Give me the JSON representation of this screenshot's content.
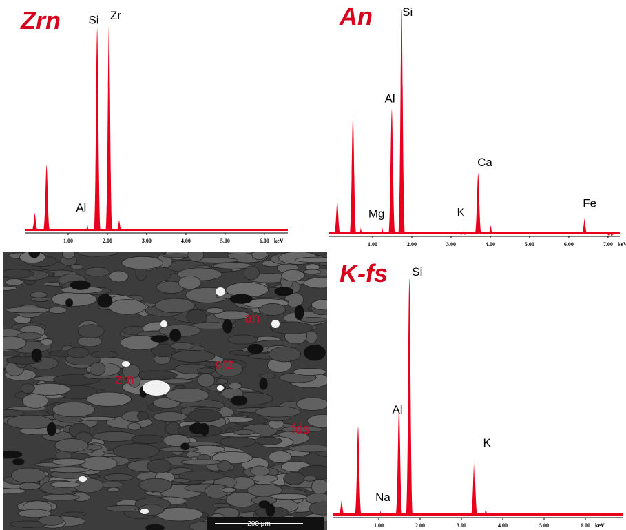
{
  "chart_data": [
    {
      "type": "spectrum",
      "title": "Zrn",
      "x_label": "keV",
      "color": "#e8001c",
      "xlim": [
        0,
        6.6
      ],
      "ylim": [
        0,
        100
      ],
      "xticks": [
        {
          "value": 1,
          "label": "1.00"
        },
        {
          "value": 2,
          "label": "2.00"
        },
        {
          "value": 3,
          "label": "3.00"
        },
        {
          "value": 4,
          "label": "4.00"
        },
        {
          "value": 5,
          "label": "5.00"
        },
        {
          "value": 6,
          "label": "6.00"
        }
      ],
      "x": [
        0.15,
        0.45,
        1.49,
        1.74,
        2.04,
        2.3
      ],
      "values": [
        8,
        29,
        3,
        89,
        91,
        5
      ],
      "annotations": [
        {
          "text": "Si",
          "x": 1.65,
          "y": 91
        },
        {
          "text": "Zr",
          "x": 2.21,
          "y": 93
        },
        {
          "text": "Al",
          "x": 1.33,
          "y": 8.5
        }
      ]
    },
    {
      "type": "spectrum",
      "title": "An",
      "x_label": "keV",
      "color": "#e8001c",
      "xlim": [
        0,
        7.3
      ],
      "ylim": [
        0,
        100
      ],
      "xticks": [
        {
          "value": 1,
          "label": "1.00"
        },
        {
          "value": 2,
          "label": "2.00"
        },
        {
          "value": 3,
          "label": "3.00"
        },
        {
          "value": 4,
          "label": "4.00"
        },
        {
          "value": 5,
          "label": "5.00"
        },
        {
          "value": 6,
          "label": "6.00"
        },
        {
          "value": 7,
          "label": "7.00"
        }
      ],
      "x": [
        0.1,
        0.5,
        0.7,
        1.25,
        1.49,
        1.74,
        3.31,
        3.69,
        4.01,
        6.4,
        7.06
      ],
      "values": [
        15,
        53,
        3,
        3,
        55,
        99,
        2,
        27,
        4,
        7,
        1
      ],
      "annotations": [
        {
          "text": "Si",
          "x": 1.89,
          "y": 96
        },
        {
          "text": "Al",
          "x": 1.44,
          "y": 58
        },
        {
          "text": "Ca",
          "x": 3.86,
          "y": 30
        },
        {
          "text": "Mg",
          "x": 1.1,
          "y": 7.5
        },
        {
          "text": "K",
          "x": 3.25,
          "y": 8
        },
        {
          "text": "Fe",
          "x": 6.53,
          "y": 12
        }
      ]
    },
    {
      "type": "spectrum",
      "title": "K-fs",
      "x_label": "keV",
      "color": "#e8001c",
      "xlim": [
        0,
        6.9
      ],
      "ylim": [
        0,
        100
      ],
      "xticks": [
        {
          "value": 1,
          "label": "1.00"
        },
        {
          "value": 2,
          "label": "2.00"
        },
        {
          "value": 3,
          "label": "3.00"
        },
        {
          "value": 4,
          "label": "4.00"
        },
        {
          "value": 5,
          "label": "5.00"
        },
        {
          "value": 6,
          "label": "6.00"
        }
      ],
      "x": [
        0.1,
        0.5,
        1.04,
        1.49,
        1.74,
        3.31,
        3.59
      ],
      "values": [
        6,
        35,
        2,
        43,
        93,
        22,
        3
      ],
      "annotations": [
        {
          "text": "Si",
          "x": 1.93,
          "y": 94
        },
        {
          "text": "Al",
          "x": 1.45,
          "y": 40
        },
        {
          "text": "K",
          "x": 3.62,
          "y": 27
        },
        {
          "text": "Na",
          "x": 1.1,
          "y": 5.7
        }
      ]
    }
  ],
  "image": {
    "labels": [
      "an",
      "qtz",
      "zrn",
      "fds"
    ],
    "scale_bar": "200 μm"
  }
}
